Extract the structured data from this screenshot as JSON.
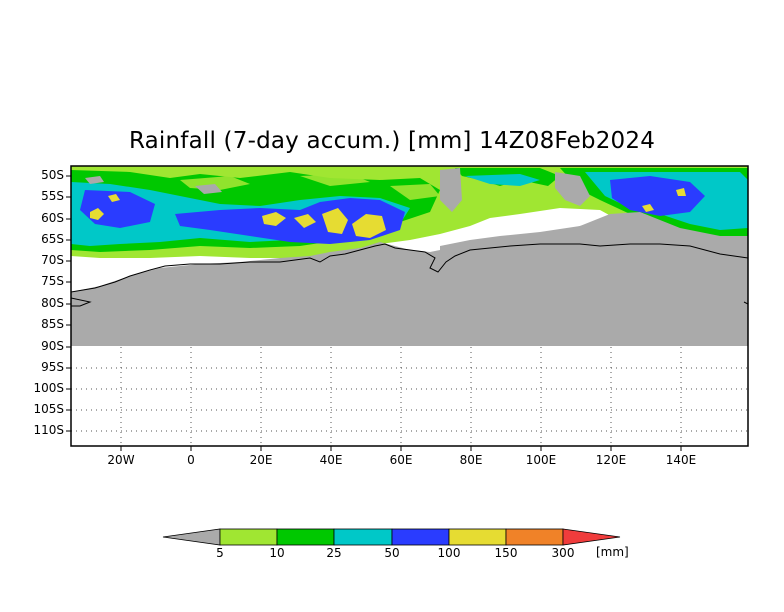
{
  "title": "Rainfall (7-day accum.) [mm] 14Z08Feb2024",
  "map": {
    "lat_labels": [
      "50S",
      "55S",
      "60S",
      "65S",
      "70S",
      "75S",
      "80S",
      "85S",
      "90S",
      "95S",
      "100S",
      "105S",
      "110S"
    ],
    "lon_labels": [
      "20W",
      "0",
      "20E",
      "40E",
      "60E",
      "80E",
      "100E",
      "120E",
      "140E"
    ],
    "land_color": "#aaaaaa",
    "coastline_color": "#000000"
  },
  "legend": {
    "levels": [
      "5",
      "10",
      "25",
      "50",
      "100",
      "150",
      "300"
    ],
    "unit": "[mm]",
    "colors": {
      "below": "#aaaaaa",
      "c5_10": "#a0e632",
      "c10_25": "#00c800",
      "c25_50": "#00c8c8",
      "c50_100": "#2a3cff",
      "c100_150": "#e6dc32",
      "c150_300": "#f08228",
      "above": "#f03c3c"
    }
  }
}
